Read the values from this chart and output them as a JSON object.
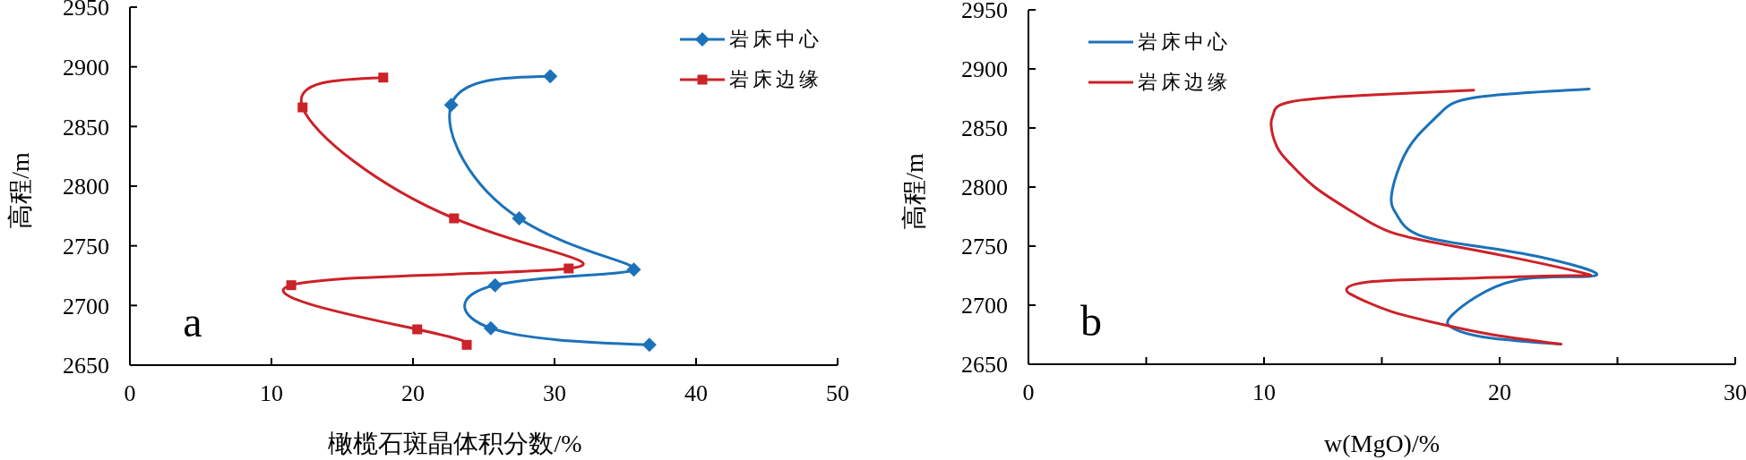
{
  "chart_data": [
    {
      "type": "line",
      "xlabel": "橄榄石斑晶体积分数/%",
      "ylabel": "高程/m",
      "annotations": [
        "a"
      ],
      "legend": "top right",
      "xlim": [
        0,
        50
      ],
      "xticks": [
        0,
        10,
        20,
        30,
        40,
        50
      ],
      "ylim": [
        2650,
        2950
      ],
      "yticks": [
        2650,
        2700,
        2750,
        2800,
        2850,
        2900,
        2950
      ],
      "series": [
        {
          "name": "岩床中心",
          "color": "#1b72b9",
          "marker": "diamond",
          "x": [
            29.7,
            22.7,
            27.5,
            35.6,
            25.8,
            25.5,
            36.7
          ],
          "values": [
            2892,
            2868,
            2773,
            2730,
            2717,
            2681,
            2667
          ]
        },
        {
          "name": "岩床边缘",
          "color": "#cc2229",
          "marker": "square",
          "x": [
            17.9,
            12.2,
            22.9,
            31,
            11.4,
            20.3,
            23.8
          ],
          "values": [
            2891,
            2866,
            2773,
            2731,
            2717,
            2680,
            2667
          ]
        }
      ]
    },
    {
      "type": "line",
      "xlabel": "w(MgO)/%",
      "ylabel": "高程/m",
      "annotations": [
        "b"
      ],
      "legend": "top left",
      "marker": "none",
      "xlim": [
        0,
        30
      ],
      "xticks": [
        0,
        {
          "value": 5,
          "label": null
        },
        10,
        {
          "value": 15,
          "label": null
        },
        20,
        {
          "value": 25,
          "label": null
        },
        30
      ],
      "ylim": [
        2650,
        2950
      ],
      "yticks": [
        2650,
        2700,
        2750,
        2800,
        2850,
        2900,
        2950
      ],
      "series": [
        {
          "name": "岩床中心",
          "color": "#1b72b9",
          "x": [
            23.8,
            19.0,
            17.5,
            16.5,
            15.8,
            15.4,
            15.65,
            16.5,
            19.0,
            21.9,
            24.1,
            22.9,
            20.7,
            19.0,
            18.0,
            17.8,
            18.3,
            19.7,
            22.6
          ],
          "values": [
            2883,
            2876,
            2863,
            2843,
            2820,
            2791,
            2776,
            2760,
            2750,
            2740,
            2727,
            2724,
            2721,
            2707,
            2692,
            2684,
            2678,
            2672,
            2667
          ]
        },
        {
          "name": "岩床边缘",
          "color": "#cc2229",
          "x": [
            18.9,
            14.6,
            11.1,
            10.4,
            10.3,
            10.55,
            11.1,
            12.15,
            13.75,
            15.35,
            17.5,
            20.4,
            23.6,
            22.9,
            19.0,
            14.6,
            13.5,
            13.9,
            15.35,
            17.5,
            19.7,
            22.6
          ],
          "values": [
            2882,
            2878,
            2872,
            2862,
            2853,
            2834,
            2820,
            2800,
            2779,
            2762,
            2752,
            2741,
            2727,
            2725,
            2723,
            2720,
            2713,
            2707,
            2695,
            2684,
            2675,
            2667
          ]
        }
      ]
    }
  ]
}
